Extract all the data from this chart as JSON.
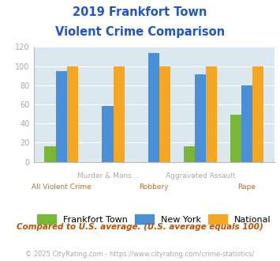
{
  "title_line1": "2019 Frankfort Town",
  "title_line2": "Violent Crime Comparison",
  "categories": [
    "All Violent Crime",
    "Murder & Mans...",
    "Robbery",
    "Aggravated Assault",
    "Rape"
  ],
  "frankfort_values": [
    16,
    0,
    0,
    16,
    49
  ],
  "newyork_values": [
    95,
    58,
    114,
    91,
    80
  ],
  "national_values": [
    100,
    100,
    100,
    100,
    100
  ],
  "frankfort_color": "#78b737",
  "newyork_color": "#4a90d9",
  "national_color": "#f5a623",
  "ylim": [
    0,
    120
  ],
  "yticks": [
    0,
    20,
    40,
    60,
    80,
    100,
    120
  ],
  "plot_bg_color": "#dce8f0",
  "legend_labels": [
    "Frankfort Town",
    "New York",
    "National"
  ],
  "footnote1": "Compared to U.S. average. (U.S. average equals 100)",
  "footnote2": "© 2025 CityRating.com - https://www.cityrating.com/crime-statistics/",
  "title_color": "#2255cc",
  "footnote1_color": "#c05000",
  "footnote2_color": "#aaaaaa",
  "upper_label_color": "#aaaaaa",
  "lower_label_color": "#c07030",
  "tick_color": "#aaaaaa",
  "upper_labels": [
    "",
    "Murder & Mans...",
    "",
    "Aggravated Assault",
    ""
  ],
  "lower_labels": [
    "All Violent Crime",
    "",
    "Robbery",
    "",
    "Rape"
  ]
}
